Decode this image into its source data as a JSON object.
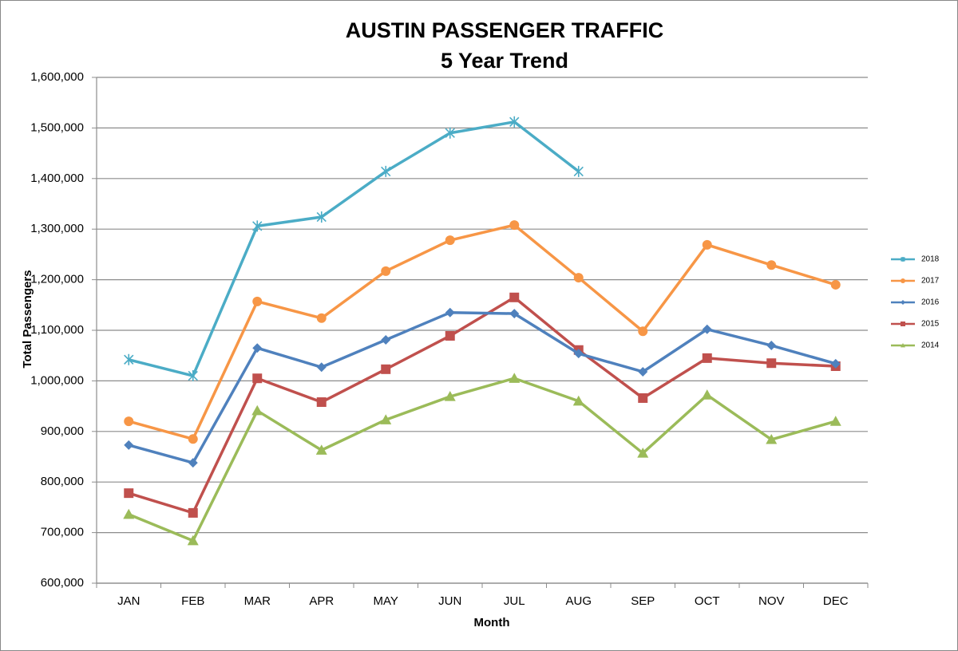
{
  "chart_data": {
    "type": "line",
    "title": "AUSTIN PASSENGER TRAFFIC",
    "subtitle": "5 Year Trend",
    "x_label": "Month",
    "y_label": "Total Passengers",
    "categories": [
      "JAN",
      "FEB",
      "MAR",
      "APR",
      "MAY",
      "JUN",
      "JUL",
      "AUG",
      "SEP",
      "OCT",
      "NOV",
      "DEC"
    ],
    "series": [
      {
        "name": "2018",
        "color": "#4bacc6",
        "marker": "star",
        "values": [
          1042000,
          1010000,
          1306000,
          1324000,
          1414000,
          1490000,
          1512000,
          1414000,
          null,
          null,
          null,
          null
        ]
      },
      {
        "name": "2017",
        "color": "#f79646",
        "marker": "circle",
        "values": [
          920000,
          885000,
          1157000,
          1124000,
          1217000,
          1278000,
          1308000,
          1204000,
          1098000,
          1269000,
          1229000,
          1190000
        ]
      },
      {
        "name": "2016",
        "color": "#4f81bd",
        "marker": "diamond",
        "values": [
          873000,
          838000,
          1065000,
          1027000,
          1081000,
          1135000,
          1133000,
          1054000,
          1018000,
          1102000,
          1070000,
          1034000
        ]
      },
      {
        "name": "2015",
        "color": "#c0504d",
        "marker": "square",
        "values": [
          778000,
          739000,
          1005000,
          958000,
          1023000,
          1089000,
          1165000,
          1061000,
          966000,
          1045000,
          1035000,
          1029000
        ]
      },
      {
        "name": "2014",
        "color": "#9bbb59",
        "marker": "triangle",
        "values": [
          736000,
          684000,
          941000,
          863000,
          923000,
          969000,
          1005000,
          960000,
          857000,
          972000,
          884000,
          920000
        ]
      }
    ],
    "ylim": [
      600000,
      1600000
    ],
    "yticks": [
      {
        "value": 600000,
        "label": "600,000"
      },
      {
        "value": 700000,
        "label": "700,000"
      },
      {
        "value": 800000,
        "label": "800,000"
      },
      {
        "value": 900000,
        "label": "900,000"
      },
      {
        "value": 1000000,
        "label": "1,000,000"
      },
      {
        "value": 1100000,
        "label": "1,100,000"
      },
      {
        "value": 1200000,
        "label": "1,200,000"
      },
      {
        "value": 1300000,
        "label": "1,300,000"
      },
      {
        "value": 1400000,
        "label": "1,400,000"
      },
      {
        "value": 1500000,
        "label": "1,500,000"
      },
      {
        "value": 1600000,
        "label": "1,600,000"
      }
    ],
    "grid": true,
    "legend": "right"
  }
}
